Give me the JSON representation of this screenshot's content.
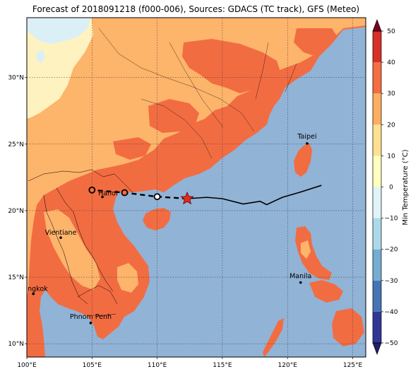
{
  "title": "Forecast of 2018091218 (f000-006), Sources: GDACS (TC track), GFS (Meteo)",
  "map": {
    "lon_range": [
      100,
      126
    ],
    "lat_range": [
      9,
      34.5
    ],
    "lon_ticks": [
      {
        "value": 100,
        "label": "100°E"
      },
      {
        "value": 105,
        "label": "105°E"
      },
      {
        "value": 110,
        "label": "110°E"
      },
      {
        "value": 115,
        "label": "115°E"
      },
      {
        "value": 120,
        "label": "120°E"
      },
      {
        "value": 125,
        "label": "125°E"
      }
    ],
    "lat_ticks": [
      {
        "value": 10,
        "label": "10°N"
      },
      {
        "value": 15,
        "label": "15°N"
      },
      {
        "value": 20,
        "label": "20°N"
      },
      {
        "value": 25,
        "label": "25°N"
      },
      {
        "value": 30,
        "label": "30°N"
      }
    ],
    "gridlines": true,
    "ocean_color": "#91b3d6",
    "land_colors": {
      "warm": "#f26c42",
      "mild": "#fdb46b",
      "cool": "#fef2c0",
      "cold": "#dbeff6"
    }
  },
  "cities": [
    {
      "name": "Taipei",
      "lon": 121.5,
      "lat": 25.05
    },
    {
      "name": "Hanoi",
      "lon": 105.8,
      "lat": 21.03
    },
    {
      "name": "Vientiane",
      "lon": 102.6,
      "lat": 17.97
    },
    {
      "name": "Bangkok",
      "lon": 100.5,
      "lat": 13.75
    },
    {
      "name": "Phnom Penh",
      "lon": 104.9,
      "lat": 11.56
    },
    {
      "name": "Manila",
      "lon": 121.0,
      "lat": 14.6
    }
  ],
  "track": {
    "past": [
      [
        122.6,
        21.9
      ],
      [
        121.0,
        21.4
      ],
      [
        119.6,
        21.0
      ],
      [
        118.4,
        20.45
      ],
      [
        117.9,
        20.7
      ],
      [
        116.6,
        20.5
      ],
      [
        115.0,
        20.9
      ],
      [
        113.8,
        21.0
      ],
      [
        112.3,
        20.9
      ]
    ],
    "forecast": [
      [
        112.3,
        20.9
      ],
      [
        110.0,
        21.05
      ],
      [
        107.5,
        21.35
      ],
      [
        105.0,
        21.55
      ]
    ],
    "forecast_points": [
      {
        "lon": 110.0,
        "lat": 21.05,
        "fill": "#ffffff"
      },
      {
        "lon": 107.5,
        "lat": 21.35,
        "fill": "#f26c42"
      },
      {
        "lon": 105.0,
        "lat": 21.55,
        "fill": "#f26c42"
      }
    ],
    "current": {
      "lon": 112.3,
      "lat": 20.9,
      "color": "#e8281c"
    }
  },
  "colorbar": {
    "label": "Min Temperature (°C)",
    "min": -50,
    "max": 50,
    "ticks": [
      -50,
      -40,
      -30,
      -20,
      -10,
      0,
      10,
      20,
      30,
      40,
      50
    ],
    "colors": [
      "#313695",
      "#4575b4",
      "#74add1",
      "#abd9e9",
      "#e0f3f8",
      "#ffffbf",
      "#fee090",
      "#fdae61",
      "#f46d43",
      "#d73027",
      "#a50026"
    ]
  }
}
